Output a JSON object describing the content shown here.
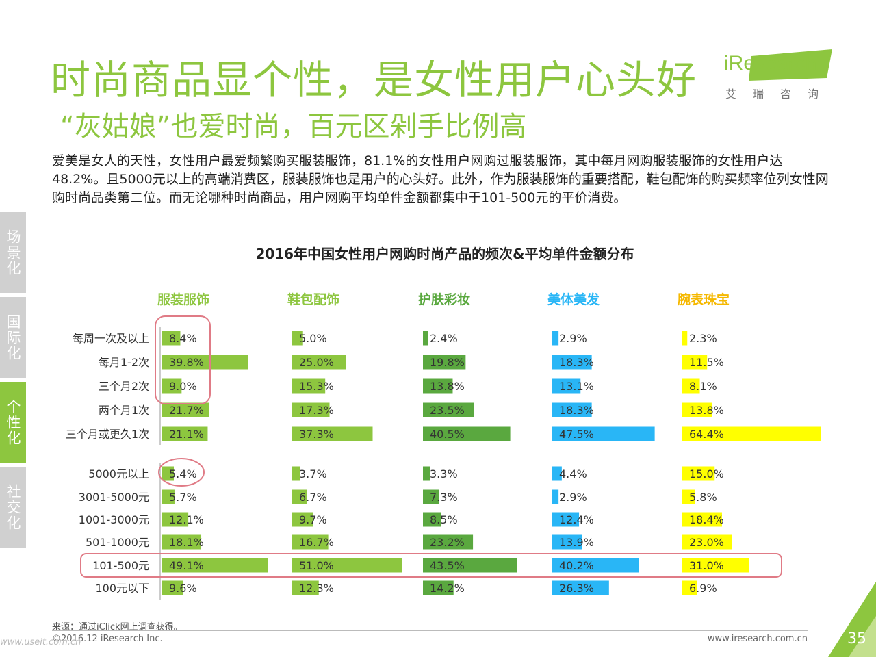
{
  "header": {
    "title": "时尚商品显个性，是女性用户心头好",
    "subtitle": "“灰姑娘”也爱时尚，百元区剁手比例高",
    "logo_text": "iResearch",
    "logo_cn": "艾瑞咨询"
  },
  "intro": "爱美是女人的天性，女性用户最爱频繁购买服装服饰，81.1%的女性用户网购过服装服饰，其中每月网购服装服饰的女性用户达48.2%。且5000元以上的高端消费区，服装服饰也是用户的心头好。此外，作为服装服饰的重要搭配，鞋包配饰的购买频率位列女性网购时尚品类第二位。而无论哪种时尚商品，用户网购平均单件金额都集中于101-500元的平价消费。",
  "sidenav": {
    "items": [
      {
        "label": "场景化"
      },
      {
        "label": "国际化"
      },
      {
        "label": "个性化"
      },
      {
        "label": "社交化"
      }
    ],
    "active_index": 2
  },
  "colors": {
    "brand": "#8dc63f",
    "categories": [
      "#8dc63f",
      "#8dc63f",
      "#5aa83f",
      "#29b6f6",
      "#ffff00"
    ],
    "annotation": "#e07b86"
  },
  "chart_data": {
    "type": "bar",
    "title": "2016年中国女性用户网购时尚产品的频次&平均单件金额分布",
    "categories": [
      "服装服饰",
      "鞋包配饰",
      "护肤彩妆",
      "美体美发",
      "腕表珠宝"
    ],
    "frequency_rows": [
      "每周一次及以上",
      "每月1-2次",
      "三个月2次",
      "两个月1次",
      "三个月或更久1次"
    ],
    "amount_rows": [
      "5000元以上",
      "3001-5000元",
      "1001-3000元",
      "501-1000元",
      "101-500元",
      "100元以下"
    ],
    "series": [
      {
        "name": "服装服饰",
        "frequency": [
          8.4,
          39.8,
          9.0,
          21.7,
          21.1
        ],
        "amount": [
          5.4,
          5.7,
          12.1,
          18.1,
          49.1,
          9.6
        ]
      },
      {
        "name": "鞋包配饰",
        "frequency": [
          5.0,
          25.0,
          15.3,
          17.3,
          37.3
        ],
        "amount": [
          3.7,
          6.7,
          9.7,
          16.7,
          51.0,
          12.3
        ]
      },
      {
        "name": "护肤彩妆",
        "frequency": [
          2.4,
          19.8,
          13.8,
          23.5,
          40.5
        ],
        "amount": [
          3.3,
          7.3,
          8.5,
          23.2,
          43.5,
          14.2
        ]
      },
      {
        "name": "美体美发",
        "frequency": [
          2.9,
          18.3,
          13.1,
          18.3,
          47.5
        ],
        "amount": [
          4.4,
          2.9,
          12.4,
          13.9,
          40.2,
          26.3
        ]
      },
      {
        "name": "腕表珠宝",
        "frequency": [
          2.3,
          11.5,
          8.1,
          13.8,
          64.4
        ],
        "amount": [
          15.0,
          5.8,
          18.4,
          23.0,
          31.0,
          6.9
        ]
      }
    ],
    "unit": "%"
  },
  "footer": {
    "source": "来源：通过iClick网上调查获得。",
    "copyright": "©2016.12 iResearch Inc.",
    "website": "www.iresearch.com.cn",
    "page_number": "35",
    "watermark": "www.useit.com.cn"
  }
}
